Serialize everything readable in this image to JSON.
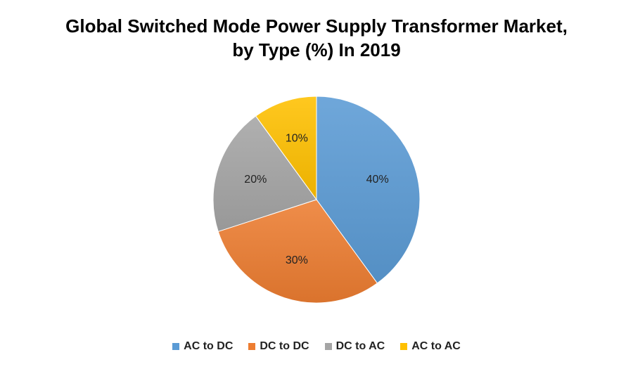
{
  "chart_data": {
    "type": "pie",
    "title_line1": "Global Switched Mode Power Supply Transformer Market,",
    "title_line2": "by Type (%) In 2019",
    "slices": [
      {
        "name": "AC to DC",
        "value": 40,
        "label": "40%",
        "color": "#5b9bd5"
      },
      {
        "name": "DC to DC",
        "value": 30,
        "label": "30%",
        "color": "#ed7d31"
      },
      {
        "name": "DC to AC",
        "value": 20,
        "label": "20%",
        "color": "#a5a5a5"
      },
      {
        "name": "AC to AC",
        "value": 10,
        "label": "10%",
        "color": "#ffc000"
      }
    ],
    "legend_position": "bottom"
  }
}
